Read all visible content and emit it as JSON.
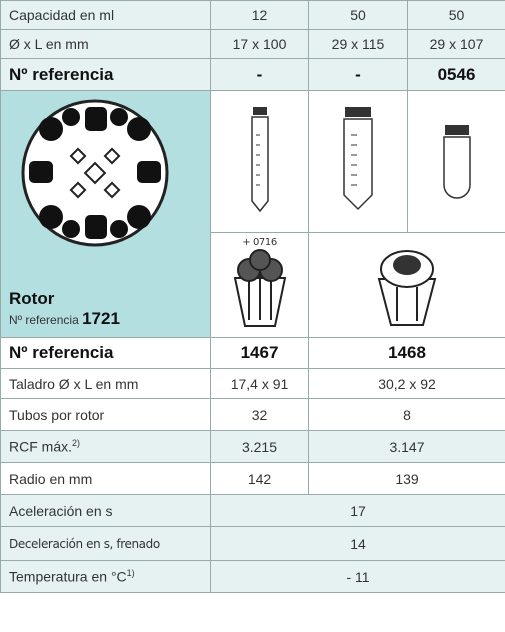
{
  "table": {
    "rows": [
      [
        "Capacidad en ml",
        "12",
        "50",
        "50"
      ],
      [
        "Ø x L en mm",
        "17 x 100",
        "29 x 115",
        "29 x 107"
      ],
      [
        "Nº referencia",
        "-",
        "-",
        "0546"
      ]
    ],
    "rotor": {
      "title": "Rotor",
      "ref_label": "Nº referencia",
      "ref": "1721",
      "adapter_note": "+ 0716"
    },
    "rows2": [
      [
        "Nº referencia",
        "1467",
        "1468"
      ],
      [
        "Taladro Ø x L en mm",
        "17,4 x 91",
        "30,2 x 92"
      ],
      [
        "Tubos por rotor",
        "32",
        "8"
      ],
      [
        "RCF máx.",
        "3.215",
        "3.147"
      ],
      [
        "Radio en mm",
        "142",
        "139"
      ]
    ],
    "rcf_note": "2)",
    "rows3": [
      [
        "Aceleración en s",
        "17"
      ],
      [
        "Deceleración en s, frenado",
        "14"
      ],
      [
        "Temperatura en °C",
        "- 11"
      ]
    ],
    "temp_note": "1)"
  }
}
